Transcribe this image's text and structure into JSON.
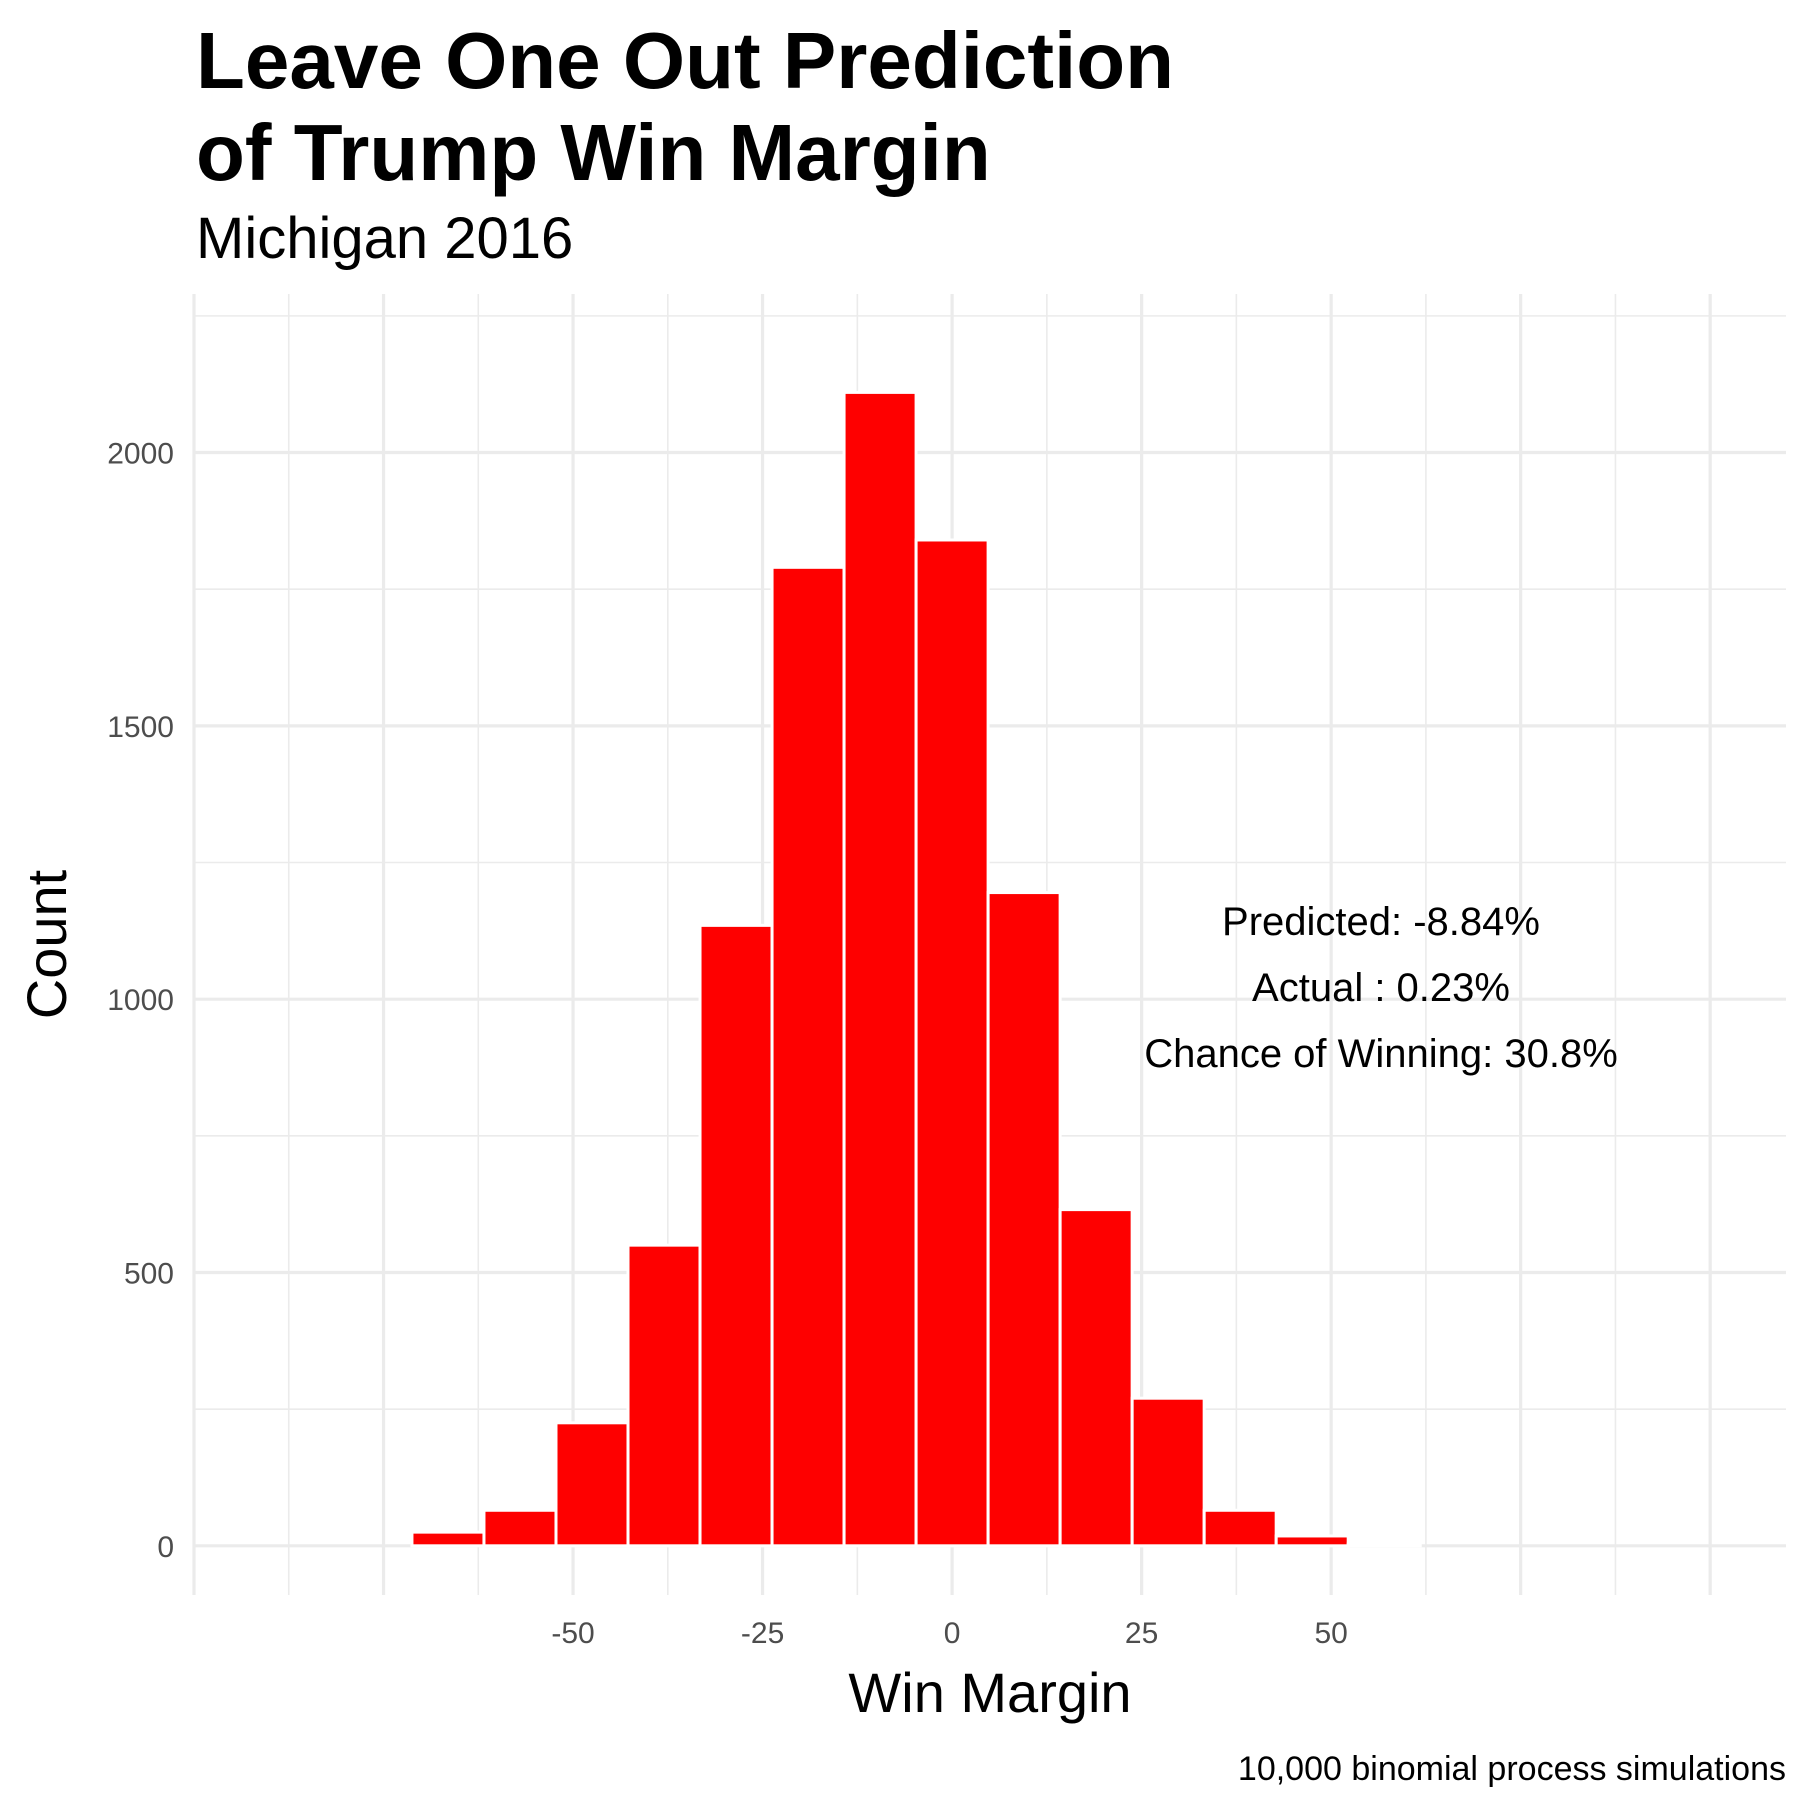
{
  "chart_data": {
    "type": "bar",
    "title_lines": [
      "Leave One Out Prediction",
      " of Trump Win Margin"
    ],
    "subtitle": "Michigan 2016",
    "xlabel": "Win Margin",
    "ylabel": "Count",
    "caption": "10,000 binomial process simulations",
    "x_ticks": [
      -50,
      -25,
      0,
      25,
      50
    ],
    "y_ticks": [
      0,
      500,
      1000,
      1500,
      2000
    ],
    "xlim": [
      -100,
      110
    ],
    "ylim": [
      -90,
      2290
    ],
    "bin_width": 9.5,
    "bar_color": "#fe0000",
    "grid": true,
    "bins": [
      {
        "center": -66.5,
        "count": 25
      },
      {
        "center": -57.0,
        "count": 65
      },
      {
        "center": -47.5,
        "count": 225
      },
      {
        "center": -38.0,
        "count": 550
      },
      {
        "center": -28.5,
        "count": 1135
      },
      {
        "center": -19.0,
        "count": 1790
      },
      {
        "center": -9.5,
        "count": 2110
      },
      {
        "center": 0.0,
        "count": 1840
      },
      {
        "center": 9.5,
        "count": 1195
      },
      {
        "center": 19.0,
        "count": 615
      },
      {
        "center": 28.5,
        "count": 270
      },
      {
        "center": 38.0,
        "count": 65
      },
      {
        "center": 47.5,
        "count": 18
      },
      {
        "center": 57.0,
        "count": 3
      }
    ],
    "annotations": [
      "Predicted: -8.84%",
      "Actual : 0.23%",
      "Chance of Winning: 30.8%"
    ]
  }
}
